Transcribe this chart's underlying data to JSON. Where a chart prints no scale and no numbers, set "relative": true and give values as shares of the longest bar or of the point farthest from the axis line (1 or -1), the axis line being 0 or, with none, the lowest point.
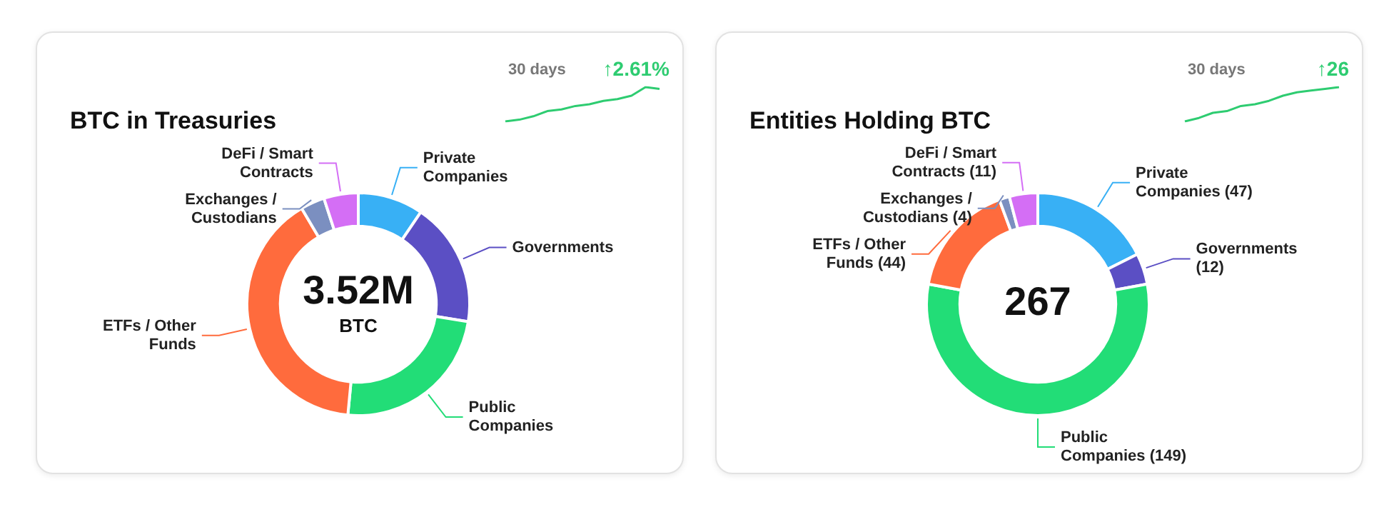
{
  "chart_data": [
    {
      "type": "donut",
      "title": "BTC in Treasuries",
      "categories": [
        "Private Companies",
        "Governments",
        "Public Companies",
        "ETFs / Other Funds",
        "Exchanges / Custodians",
        "DeFi / Smart Contracts"
      ],
      "values": [
        9.5,
        18,
        24,
        40,
        3.5,
        5
      ],
      "colors": [
        "#38b0f5",
        "#5b4fc4",
        "#22dd77",
        "#ff6b3d",
        "#7b8fc0",
        "#d46ef5"
      ],
      "annotations": [
        "3.52M",
        "BTC"
      ]
    },
    {
      "type": "line",
      "title": "30 days",
      "annotations": [
        "↑2.61%"
      ],
      "relative": true,
      "marker": "none",
      "categories": [
        null,
        null,
        null,
        null,
        null,
        null,
        null,
        null,
        null,
        null,
        null,
        null
      ],
      "values": [
        0,
        0.05,
        0.15,
        0.3,
        0.35,
        0.45,
        0.5,
        0.6,
        0.65,
        0.75,
        1,
        0.95
      ],
      "color": "#2ecc71"
    },
    {
      "type": "donut",
      "title": "Entities Holding BTC",
      "categories": [
        "Private Companies",
        "Governments",
        "Public Companies",
        "ETFs / Other Funds",
        "Exchanges / Custodians",
        "DeFi / Smart Contracts"
      ],
      "values": [
        47,
        12,
        149,
        44,
        4,
        11
      ],
      "colors": [
        "#38b0f5",
        "#5b4fc4",
        "#22dd77",
        "#ff6b3d",
        "#7b8fc0",
        "#d46ef5"
      ],
      "annotations": [
        "267"
      ],
      "value_labels": [
        "(47)",
        "(12)",
        "(149)",
        "(44)",
        "(4)",
        "(11)"
      ]
    },
    {
      "type": "line",
      "title": "30 days",
      "annotations": [
        "↑26"
      ],
      "relative": true,
      "marker": "none",
      "categories": [
        null,
        null,
        null,
        null,
        null,
        null,
        null,
        null,
        null,
        null,
        null,
        null
      ],
      "values": [
        0,
        0.1,
        0.25,
        0.3,
        0.45,
        0.5,
        0.6,
        0.75,
        0.85,
        0.9,
        0.95,
        1
      ],
      "color": "#2ecc71"
    }
  ]
}
